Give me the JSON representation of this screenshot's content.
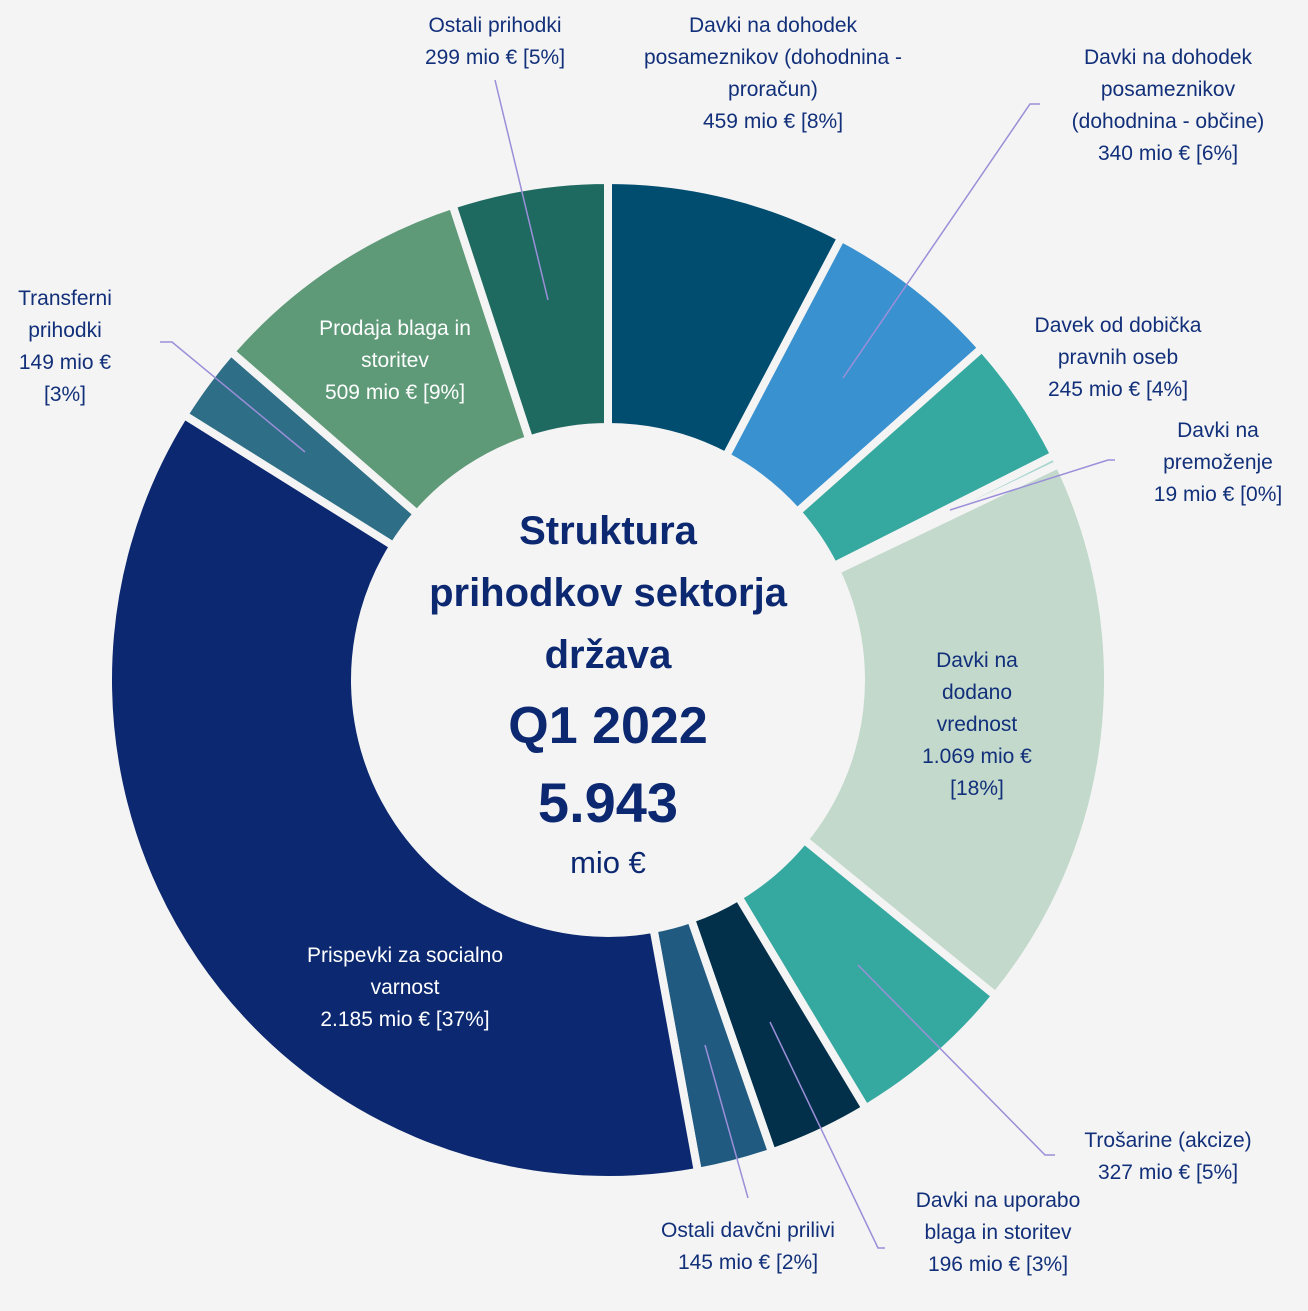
{
  "chart_data": {
    "type": "donut",
    "title": "Struktura prihodkov sektorja država",
    "subtitle": "Q1 2022",
    "total": "5.943",
    "unit": "mio €",
    "categories": [
      "Davki na dohodek posameznikov (dohodnina - proračun)",
      "Davki na dohodek posameznikov (dohodnina - občine)",
      "Davek od dobička pravnih oseb",
      "Davki na premoženje",
      "Davki na dodano vrednost",
      "Trošarine (akcize)",
      "Davki na uporabo blaga in storitev",
      "Ostali davčni prilivi",
      "Prispevki za socialno varnost",
      "Transferni prihodki",
      "Prodaja blaga in storitev",
      "Ostali prihodki"
    ],
    "values": [
      459,
      340,
      245,
      19,
      1069,
      327,
      196,
      145,
      2185,
      149,
      509,
      299
    ],
    "value_labels": [
      "459 mio € [8%]",
      "340 mio € [6%]",
      "245 mio € [4%]",
      "19 mio € [0%]",
      "1.069 mio € [18%]",
      "327 mio € [5%]",
      "196 mio € [3%]",
      "145 mio € [2%]",
      "2.185 mio € [37%]",
      "149 mio € [3%]",
      "509 mio € [9%]",
      "299 mio € [5%]"
    ],
    "colors": [
      "#004d70",
      "#3a91d0",
      "#35a8a0",
      "#a9d6cf",
      "#c2d9cc",
      "#35a8a0",
      "#02304a",
      "#215a80",
      "#0b2870",
      "#2e6e86",
      "#5e9a78",
      "#1f6a60"
    ]
  }
}
